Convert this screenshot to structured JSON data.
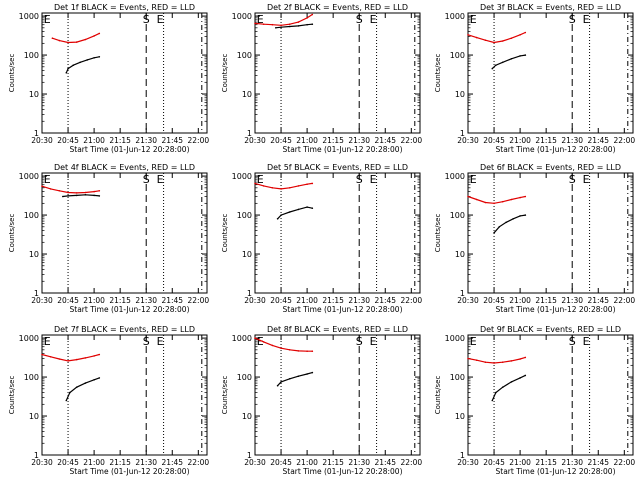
{
  "colors": {
    "events": "#000000",
    "lld": "#e00000",
    "axis": "#000000"
  },
  "chart_data": [
    {
      "type": "line",
      "title": "Det 1f BLACK = Events, RED = LLD",
      "xlabel": "Start Time (01-Jun-12 20:28:00)",
      "ylabel": "Counts/sec",
      "x_ticks": [
        "20:30",
        "20:45",
        "21:00",
        "21:15",
        "21:30",
        "21:45",
        "22:00"
      ],
      "y_ticks": [
        "1",
        "10",
        "100",
        "1000"
      ],
      "y_scale": "log",
      "ylim": [
        1,
        1200
      ],
      "xlim_minutes": [
        20.5,
        22.15
      ],
      "series": [
        {
          "name": "LLD",
          "color": "red",
          "x": [
            "20:36",
            "20:40",
            "20:45",
            "20:50",
            "20:55",
            "21:00",
            "21:03"
          ],
          "values": [
            270,
            235,
            210,
            215,
            250,
            310,
            360
          ]
        },
        {
          "name": "Events",
          "color": "black",
          "x": [
            "20:44",
            "20:45",
            "20:48",
            "20:52",
            "20:56",
            "21:00",
            "21:03"
          ],
          "values": [
            35,
            45,
            55,
            65,
            75,
            85,
            90
          ]
        }
      ],
      "markers": [
        {
          "label": "E",
          "x": "20:33"
        },
        {
          "label": "S",
          "x": "21:30"
        },
        {
          "label": "E",
          "x": "21:38"
        }
      ]
    },
    {
      "type": "line",
      "title": "Det 2f BLACK = Events, RED = LLD",
      "xlabel": "Start Time (01-Jun-12 20:28:00)",
      "ylabel": "Counts/sec",
      "x_ticks": [
        "20:30",
        "20:45",
        "21:00",
        "21:15",
        "21:30",
        "21:45",
        "22:00"
      ],
      "y_ticks": [
        "1",
        "10",
        "100",
        "1000"
      ],
      "y_scale": "log",
      "series": [
        {
          "name": "LLD",
          "color": "red",
          "x": [
            "20:30",
            "20:35",
            "20:40",
            "20:45",
            "20:50",
            "20:55",
            "21:00",
            "21:03"
          ],
          "values": [
            650,
            620,
            600,
            580,
            620,
            700,
            900,
            1100
          ]
        },
        {
          "name": "Events",
          "color": "black",
          "x": [
            "20:42",
            "20:45",
            "20:50",
            "20:55",
            "21:00",
            "21:03"
          ],
          "values": [
            500,
            520,
            540,
            560,
            600,
            620
          ]
        }
      ],
      "markers": [
        {
          "label": "E",
          "x": "20:33"
        },
        {
          "label": "S",
          "x": "21:30"
        },
        {
          "label": "E",
          "x": "21:38"
        }
      ]
    },
    {
      "type": "line",
      "title": "Det 3f BLACK = Events, RED = LLD",
      "xlabel": "Start Time (01-Jun-12 20:28:00)",
      "ylabel": "Counts/sec",
      "x_ticks": [
        "20:30",
        "20:45",
        "21:00",
        "21:15",
        "21:30",
        "21:45",
        "22:00"
      ],
      "y_ticks": [
        "1",
        "10",
        "100",
        "1000"
      ],
      "y_scale": "log",
      "series": [
        {
          "name": "LLD",
          "color": "red",
          "x": [
            "20:30",
            "20:35",
            "20:40",
            "20:45",
            "20:50",
            "20:55",
            "21:00",
            "21:03"
          ],
          "values": [
            330,
            280,
            240,
            210,
            230,
            270,
            330,
            380
          ]
        },
        {
          "name": "Events",
          "color": "black",
          "x": [
            "20:44",
            "20:46",
            "20:50",
            "20:55",
            "21:00",
            "21:03"
          ],
          "values": [
            45,
            55,
            65,
            80,
            95,
            100
          ]
        }
      ],
      "markers": [
        {
          "label": "E",
          "x": "20:33"
        },
        {
          "label": "S",
          "x": "21:30"
        },
        {
          "label": "E",
          "x": "21:38"
        }
      ]
    },
    {
      "type": "line",
      "title": "Det 4f BLACK = Events, RED = LLD",
      "xlabel": "Start Time (01-Jun-12 20:28:00)",
      "ylabel": "Counts/sec",
      "x_ticks": [
        "20:30",
        "20:45",
        "21:00",
        "21:15",
        "21:30",
        "21:45",
        "22:00"
      ],
      "y_ticks": [
        "1",
        "10",
        "100",
        "1000"
      ],
      "y_scale": "log",
      "series": [
        {
          "name": "LLD",
          "color": "red",
          "x": [
            "20:30",
            "20:35",
            "20:40",
            "20:45",
            "20:50",
            "20:55",
            "21:00",
            "21:03"
          ],
          "values": [
            550,
            470,
            420,
            380,
            370,
            380,
            400,
            420
          ]
        },
        {
          "name": "Events",
          "color": "black",
          "x": [
            "20:42",
            "20:45",
            "20:50",
            "20:55",
            "21:00",
            "21:03"
          ],
          "values": [
            300,
            310,
            320,
            330,
            320,
            310
          ]
        }
      ],
      "markers": [
        {
          "label": "E",
          "x": "20:33"
        },
        {
          "label": "S",
          "x": "21:30"
        },
        {
          "label": "E",
          "x": "21:38"
        }
      ]
    },
    {
      "type": "line",
      "title": "Det 5f BLACK = Events, RED = LLD",
      "xlabel": "Start Time (01-Jun-12 20:28:00)",
      "ylabel": "Counts/sec",
      "x_ticks": [
        "20:30",
        "20:45",
        "21:00",
        "21:15",
        "21:30",
        "21:45",
        "22:00"
      ],
      "y_ticks": [
        "1",
        "10",
        "100",
        "1000"
      ],
      "y_scale": "log",
      "series": [
        {
          "name": "LLD",
          "color": "red",
          "x": [
            "20:30",
            "20:35",
            "20:40",
            "20:45",
            "20:50",
            "20:55",
            "21:00",
            "21:03"
          ],
          "values": [
            650,
            560,
            500,
            470,
            500,
            560,
            620,
            650
          ]
        },
        {
          "name": "Events",
          "color": "black",
          "x": [
            "20:43",
            "20:45",
            "20:50",
            "20:55",
            "21:00",
            "21:03"
          ],
          "values": [
            80,
            100,
            120,
            140,
            160,
            150
          ]
        }
      ],
      "markers": [
        {
          "label": "E",
          "x": "20:33"
        },
        {
          "label": "S",
          "x": "21:30"
        },
        {
          "label": "E",
          "x": "21:38"
        }
      ]
    },
    {
      "type": "line",
      "title": "Det 6f BLACK = Events, RED = LLD",
      "xlabel": "Start Time (01-Jun-12 20:28:00)",
      "ylabel": "Counts/sec",
      "x_ticks": [
        "20:30",
        "20:45",
        "21:00",
        "21:15",
        "21:30",
        "21:45",
        "22:00"
      ],
      "y_ticks": [
        "1",
        "10",
        "100",
        "1000"
      ],
      "y_scale": "log",
      "series": [
        {
          "name": "LLD",
          "color": "red",
          "x": [
            "20:30",
            "20:35",
            "20:40",
            "20:45",
            "20:50",
            "20:55",
            "21:00",
            "21:03"
          ],
          "values": [
            300,
            250,
            210,
            200,
            220,
            250,
            280,
            300
          ]
        },
        {
          "name": "Events",
          "color": "black",
          "x": [
            "20:45",
            "20:48",
            "20:52",
            "20:56",
            "21:00",
            "21:03"
          ],
          "values": [
            35,
            50,
            65,
            80,
            95,
            100
          ]
        }
      ],
      "markers": [
        {
          "label": "E",
          "x": "20:33"
        },
        {
          "label": "S",
          "x": "21:30"
        },
        {
          "label": "E",
          "x": "21:38"
        }
      ]
    },
    {
      "type": "line",
      "title": "Det 7f BLACK = Events, RED = LLD",
      "xlabel": "Start Time (01-Jun-12 20:28:00)",
      "ylabel": "Counts/sec",
      "x_ticks": [
        "20:30",
        "20:45",
        "21:00",
        "21:15",
        "21:30",
        "21:45",
        "22:00"
      ],
      "y_ticks": [
        "1",
        "10",
        "100",
        "1000"
      ],
      "y_scale": "log",
      "series": [
        {
          "name": "LLD",
          "color": "red",
          "x": [
            "20:30",
            "20:35",
            "20:40",
            "20:45",
            "20:50",
            "20:55",
            "21:00",
            "21:03"
          ],
          "values": [
            380,
            330,
            290,
            260,
            280,
            310,
            350,
            380
          ]
        },
        {
          "name": "Events",
          "color": "black",
          "x": [
            "20:44",
            "20:46",
            "20:50",
            "20:55",
            "21:00",
            "21:03"
          ],
          "values": [
            25,
            40,
            55,
            70,
            85,
            95
          ]
        }
      ],
      "markers": [
        {
          "label": "E",
          "x": "20:33"
        },
        {
          "label": "S",
          "x": "21:30"
        },
        {
          "label": "E",
          "x": "21:38"
        }
      ]
    },
    {
      "type": "line",
      "title": "Det 8f BLACK = Events, RED = LLD",
      "xlabel": "Start Time (01-Jun-12 20:28:00)",
      "ylabel": "Counts/sec",
      "x_ticks": [
        "20:30",
        "20:45",
        "21:00",
        "21:15",
        "21:30",
        "21:45",
        "22:00"
      ],
      "y_ticks": [
        "1",
        "10",
        "100",
        "1000"
      ],
      "y_scale": "log",
      "series": [
        {
          "name": "LLD",
          "color": "red",
          "x": [
            "20:30",
            "20:35",
            "20:40",
            "20:45",
            "20:50",
            "20:55",
            "21:00",
            "21:03"
          ],
          "values": [
            1000,
            800,
            650,
            550,
            500,
            470,
            460,
            460
          ]
        },
        {
          "name": "Events",
          "color": "black",
          "x": [
            "20:43",
            "20:45",
            "20:50",
            "20:55",
            "21:00",
            "21:03"
          ],
          "values": [
            60,
            75,
            90,
            105,
            120,
            130
          ]
        }
      ],
      "markers": [
        {
          "label": "E",
          "x": "20:33"
        },
        {
          "label": "S",
          "x": "21:30"
        },
        {
          "label": "E",
          "x": "21:38"
        }
      ]
    },
    {
      "type": "line",
      "title": "Det 9f BLACK = Events, RED = LLD",
      "xlabel": "Start Time (01-Jun-12 20:28:00)",
      "ylabel": "Counts/sec",
      "x_ticks": [
        "20:30",
        "20:45",
        "21:00",
        "21:15",
        "21:30",
        "21:45",
        "22:00"
      ],
      "y_ticks": [
        "1",
        "10",
        "100",
        "1000"
      ],
      "y_scale": "log",
      "series": [
        {
          "name": "LLD",
          "color": "red",
          "x": [
            "20:30",
            "20:35",
            "20:40",
            "20:45",
            "20:50",
            "20:55",
            "21:00",
            "21:03"
          ],
          "values": [
            300,
            270,
            240,
            230,
            240,
            260,
            290,
            320
          ]
        },
        {
          "name": "Events",
          "color": "black",
          "x": [
            "20:44",
            "20:46",
            "20:50",
            "20:55",
            "21:00",
            "21:03"
          ],
          "values": [
            25,
            40,
            55,
            75,
            95,
            110
          ]
        }
      ],
      "markers": [
        {
          "label": "E",
          "x": "20:33"
        },
        {
          "label": "S",
          "x": "21:30"
        },
        {
          "label": "E",
          "x": "21:38"
        }
      ]
    }
  ]
}
